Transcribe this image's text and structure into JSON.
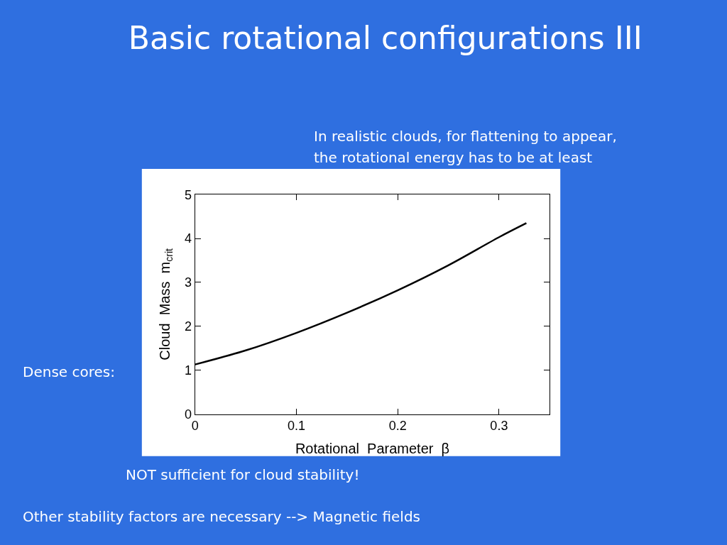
{
  "chart_data": {
    "type": "line",
    "title": "Basic rotational configurations III",
    "xlabel": "Rotational  Parameter  β",
    "ylabel": "Cloud  Mass  m$_{crit}$",
    "x": [
      0,
      0.05,
      0.1,
      0.15,
      0.2,
      0.25,
      0.3,
      0.327
    ],
    "series": [
      {
        "color": "#000000",
        "values": [
          1.13,
          1.45,
          1.85,
          2.31,
          2.82,
          3.39,
          4.03,
          4.35
        ]
      }
    ],
    "xlim": [
      0,
      0.35
    ],
    "xticks": [
      0,
      0.1,
      0.2,
      0.3
    ],
    "ylim": [
      0,
      5
    ],
    "yticks": [
      0,
      1,
      2,
      3,
      4,
      5
    ],
    "marker": "none",
    "line_style": "solid",
    "annotations": [
      "In realistic clouds, for flattening to appear,",
      "the rotational energy has to be at least",
      "Dense cores:",
      "NOT sufficient for cloud stability!",
      "Other stability factors are necessary --> Magnetic fields"
    ]
  }
}
